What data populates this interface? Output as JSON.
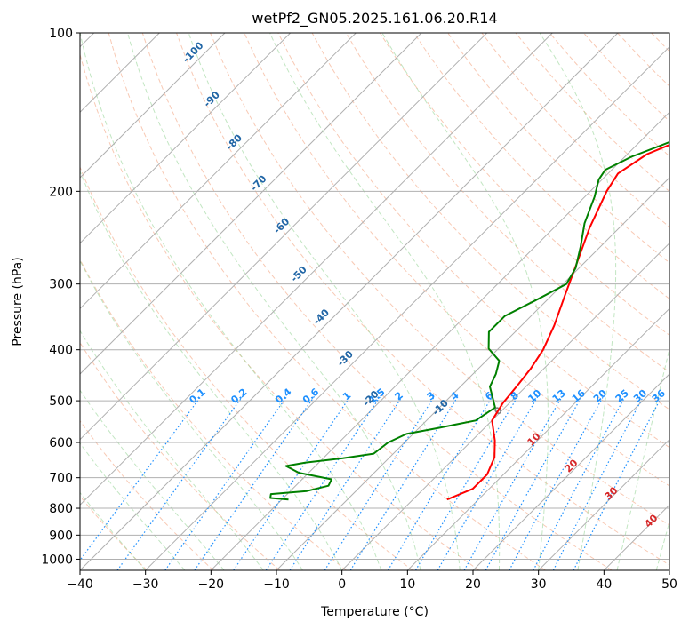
{
  "chart_data": {
    "type": "line",
    "title": "wetPf2_GN05.2025.161.06.20.R14",
    "xlabel": "Temperature (°C)",
    "ylabel": "Pressure (hPa)",
    "xlim": [
      -40,
      50
    ],
    "ylim": [
      1050,
      100
    ],
    "yscale": "log",
    "grid": true,
    "x_ticks": [
      -40,
      -30,
      -20,
      -10,
      0,
      10,
      20,
      30,
      40,
      50
    ],
    "x_tick_labels": [
      "−40",
      "−30",
      "−20",
      "−10",
      "0",
      "10",
      "20",
      "30",
      "40",
      "50"
    ],
    "y_ticks": [
      1000,
      900,
      800,
      700,
      600,
      500,
      400,
      300,
      200,
      100
    ],
    "y_tick_labels": [
      "1000",
      "900",
      "800",
      "700",
      "600",
      "500",
      "400",
      "300",
      "200",
      "100"
    ],
    "series": [
      {
        "role": "temperature",
        "color": "#ff0000",
        "points": [
          [
            5.2,
            770
          ],
          [
            7.5,
            735
          ],
          [
            7.5,
            690
          ],
          [
            6.0,
            640
          ],
          [
            3.5,
            595
          ],
          [
            0.0,
            545
          ],
          [
            -1.0,
            505
          ],
          [
            -1.5,
            465
          ],
          [
            -2.0,
            435
          ],
          [
            -3.0,
            400
          ],
          [
            -5.0,
            360
          ],
          [
            -8.0,
            315
          ],
          [
            -11.0,
            275
          ],
          [
            -14.5,
            235
          ],
          [
            -17.5,
            200
          ],
          [
            -18.5,
            185
          ],
          [
            -17.0,
            170
          ],
          [
            -14.0,
            160
          ],
          [
            -10.5,
            150
          ],
          [
            -6.5,
            140
          ],
          [
            -2.5,
            129
          ],
          [
            0.0,
            120
          ],
          [
            2.0,
            111
          ],
          [
            4.5,
            100
          ]
        ]
      },
      {
        "role": "dewpoint",
        "color": "#008000",
        "points": [
          [
            -19.0,
            770
          ],
          [
            -22.0,
            765
          ],
          [
            -22.5,
            752
          ],
          [
            -17.5,
            742
          ],
          [
            -15.0,
            725
          ],
          [
            -15.5,
            705
          ],
          [
            -21.5,
            685
          ],
          [
            -24.5,
            665
          ],
          [
            -22.0,
            655
          ],
          [
            -17.0,
            643
          ],
          [
            -13.0,
            630
          ],
          [
            -12.5,
            600
          ],
          [
            -11.0,
            578
          ],
          [
            -7.0,
            563
          ],
          [
            -2.5,
            545
          ],
          [
            -1.5,
            515
          ],
          [
            -5.5,
            470
          ],
          [
            -6.5,
            445
          ],
          [
            -8.0,
            420
          ],
          [
            -11.5,
            398
          ],
          [
            -14.0,
            370
          ],
          [
            -14.0,
            345
          ],
          [
            -11.5,
            320
          ],
          [
            -9.5,
            300
          ],
          [
            -10.5,
            280
          ],
          [
            -13.0,
            255
          ],
          [
            -16.0,
            230
          ],
          [
            -18.5,
            205
          ],
          [
            -20.5,
            190
          ],
          [
            -21.0,
            182
          ],
          [
            -19.0,
            172
          ],
          [
            -16.0,
            163
          ],
          [
            -13.0,
            154
          ],
          [
            -9.0,
            144
          ],
          [
            -5.5,
            132
          ],
          [
            -5.5,
            123
          ],
          [
            -4.0,
            115
          ],
          [
            -2.5,
            108
          ],
          [
            -0.5,
            100
          ]
        ]
      }
    ],
    "isotherm_labels": [
      "-100",
      "-90",
      "-80",
      "-70",
      "-60",
      "-50",
      "-40",
      "-30",
      "-20",
      "-10"
    ],
    "isotherm_label_color": "#2166a6",
    "mixing_ratio_labels": [
      "0.1",
      "0.2",
      "0.4",
      "0.6",
      "1",
      "1.5",
      "2",
      "3",
      "4",
      "6",
      "8",
      "10",
      "13",
      "16",
      "20",
      "25",
      "30",
      "36"
    ],
    "mixing_ratio_color": "#1e90ff",
    "moist_adiabat_labels": [
      "0",
      "10",
      "20",
      "30",
      "40"
    ],
    "moist_adiabat_label_colors": [
      "#808080",
      "#d62728",
      "#d62728",
      "#d62728",
      "#d62728"
    ],
    "colors": {
      "grid": "#b0b0b0",
      "skewed_isotherm": "#b0b0b0",
      "dry_adiabat": "#f4a582",
      "moist_adiabat": "#8fd18f",
      "mixing_ratio": "#1e90ff",
      "outer_adiabat": "#d2b48c"
    }
  }
}
